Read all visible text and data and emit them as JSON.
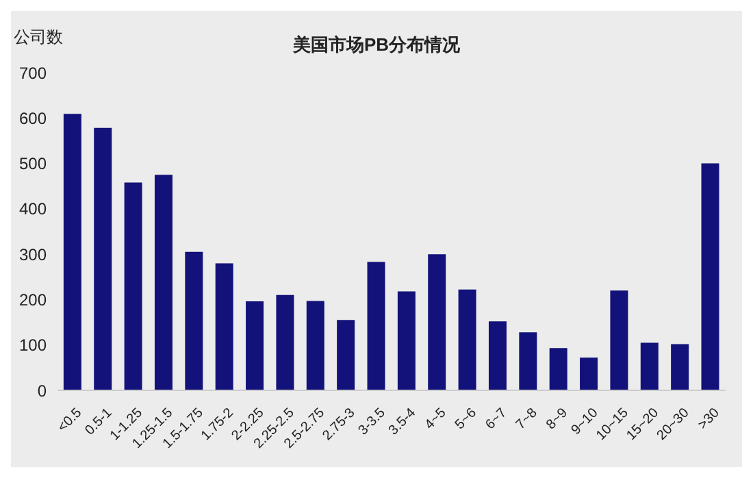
{
  "chart_data": {
    "type": "bar",
    "title": "美国市场PB分布情况",
    "ylabel": "公司数",
    "categories": [
      "<0.5",
      "0.5-1",
      "1-1.25",
      "1.25-1.5",
      "1.5-1.75",
      "1.75-2",
      "2-2.25",
      "2.25-2.5",
      "2.5-2.75",
      "2.75-3",
      "3-3.5",
      "3.5-4",
      "4~5",
      "5~6",
      "6~7",
      "7~8",
      "8~9",
      "9~10",
      "10~15",
      "15~20",
      "20~30",
      ">30"
    ],
    "values": [
      609,
      578,
      458,
      475,
      305,
      280,
      196,
      210,
      197,
      155,
      283,
      218,
      300,
      222,
      152,
      128,
      93,
      72,
      220,
      105,
      102,
      500
    ],
    "color": "#12127a",
    "ylim": [
      0,
      700
    ],
    "yticks": [
      0,
      100,
      200,
      300,
      400,
      500,
      600,
      700
    ],
    "grid": false
  }
}
